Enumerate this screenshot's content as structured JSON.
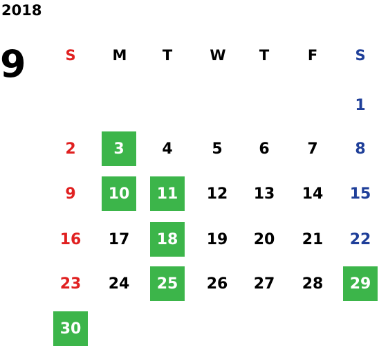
{
  "calendar": {
    "year": "2018",
    "month": "9",
    "weekdays": [
      "S",
      "M",
      "T",
      "W",
      "T",
      "F",
      "S"
    ],
    "days": [
      {
        "text": "1",
        "type": "sat",
        "highlighted": false
      },
      {
        "text": "2",
        "type": "sun",
        "highlighted": false
      },
      {
        "text": "3",
        "type": "weekday",
        "highlighted": true
      },
      {
        "text": "4",
        "type": "weekday",
        "highlighted": false
      },
      {
        "text": "5",
        "type": "weekday",
        "highlighted": false
      },
      {
        "text": "6",
        "type": "weekday",
        "highlighted": false
      },
      {
        "text": "7",
        "type": "weekday",
        "highlighted": false
      },
      {
        "text": "8",
        "type": "sat",
        "highlighted": false
      },
      {
        "text": "9",
        "type": "sun",
        "highlighted": false
      },
      {
        "text": "10",
        "type": "weekday",
        "highlighted": true
      },
      {
        "text": "11",
        "type": "weekday",
        "highlighted": true
      },
      {
        "text": "12",
        "type": "weekday",
        "highlighted": false
      },
      {
        "text": "13",
        "type": "weekday",
        "highlighted": false
      },
      {
        "text": "14",
        "type": "weekday",
        "highlighted": false
      },
      {
        "text": "15",
        "type": "sat",
        "highlighted": false
      },
      {
        "text": "16",
        "type": "sun",
        "highlighted": false
      },
      {
        "text": "17",
        "type": "weekday",
        "highlighted": false
      },
      {
        "text": "18",
        "type": "weekday",
        "highlighted": true
      },
      {
        "text": "19",
        "type": "weekday",
        "highlighted": false
      },
      {
        "text": "20",
        "type": "weekday",
        "highlighted": false
      },
      {
        "text": "21",
        "type": "weekday",
        "highlighted": false
      },
      {
        "text": "22",
        "type": "sat",
        "highlighted": false
      },
      {
        "text": "23",
        "type": "sun",
        "highlighted": false
      },
      {
        "text": "24",
        "type": "weekday",
        "highlighted": false
      },
      {
        "text": "25",
        "type": "weekday",
        "highlighted": true
      },
      {
        "text": "26",
        "type": "weekday",
        "highlighted": false
      },
      {
        "text": "27",
        "type": "weekday",
        "highlighted": false
      },
      {
        "text": "28",
        "type": "weekday",
        "highlighted": false
      },
      {
        "text": "29",
        "type": "sat",
        "highlighted": true
      },
      {
        "text": "30",
        "type": "sun",
        "highlighted": true
      }
    ]
  },
  "colors": {
    "sunday": "#e02020",
    "saturday": "#1f3f99",
    "highlight": "#3cb54a",
    "text": "#000000"
  }
}
